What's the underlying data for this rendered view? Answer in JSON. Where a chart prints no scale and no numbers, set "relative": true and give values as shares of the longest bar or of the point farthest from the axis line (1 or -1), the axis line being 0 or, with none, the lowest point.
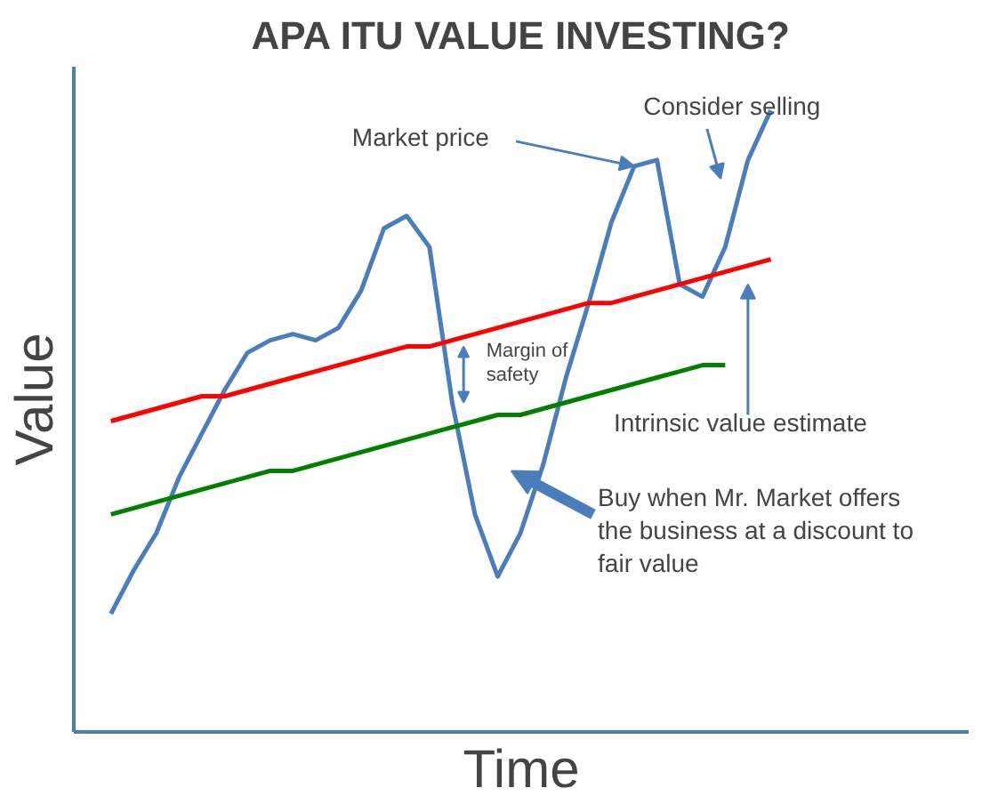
{
  "chart_data": {
    "type": "line",
    "title": "APA ITU VALUE INVESTING?",
    "xlabel": "Time",
    "ylabel": "Value",
    "relative": true,
    "categories": [
      null,
      null,
      null,
      null,
      null,
      null,
      null,
      null,
      null,
      null,
      null,
      null,
      null,
      null,
      null,
      null,
      null,
      null,
      null,
      null,
      null,
      null,
      null,
      null,
      null,
      null,
      null,
      null,
      null,
      null
    ],
    "series": [
      {
        "color": "#4a7ebb",
        "values": [
          0.19,
          0.26,
          0.32,
          0.41,
          0.48,
          0.55,
          0.61,
          0.63,
          0.64,
          0.63,
          0.65,
          0.71,
          0.81,
          0.83,
          0.78,
          0.53,
          0.35,
          0.25,
          0.32,
          0.43,
          0.57,
          0.69,
          0.82,
          0.91,
          0.92,
          0.72,
          0.7,
          0.78,
          0.92,
          1.0
        ]
      },
      {
        "color": "#ff0000",
        "values": [
          0.5,
          0.51,
          0.52,
          0.53,
          0.54,
          0.54,
          0.55,
          0.56,
          0.57,
          0.58,
          0.59,
          0.6,
          0.61,
          0.62,
          0.62,
          0.63,
          0.64,
          0.65,
          0.66,
          0.67,
          0.68,
          0.69,
          0.69,
          0.7,
          0.71,
          0.72,
          0.73,
          0.74,
          0.75,
          0.76
        ]
      },
      {
        "color": "#008000",
        "values": [
          0.35,
          0.36,
          0.37,
          0.38,
          0.39,
          0.4,
          0.41,
          0.42,
          0.42,
          0.43,
          0.44,
          0.45,
          0.46,
          0.47,
          0.48,
          0.49,
          0.5,
          0.51,
          0.51,
          0.52,
          0.53,
          0.54,
          0.55,
          0.56,
          0.57,
          0.58,
          0.59,
          0.59,
          null,
          null
        ]
      }
    ],
    "annotations": [
      "Consider selling",
      "Market price",
      "Margin of\nsafety",
      "Intrinsic value estimate",
      "Buy when Mr. Market offers\nthe business at a discount to\nfair value"
    ]
  }
}
